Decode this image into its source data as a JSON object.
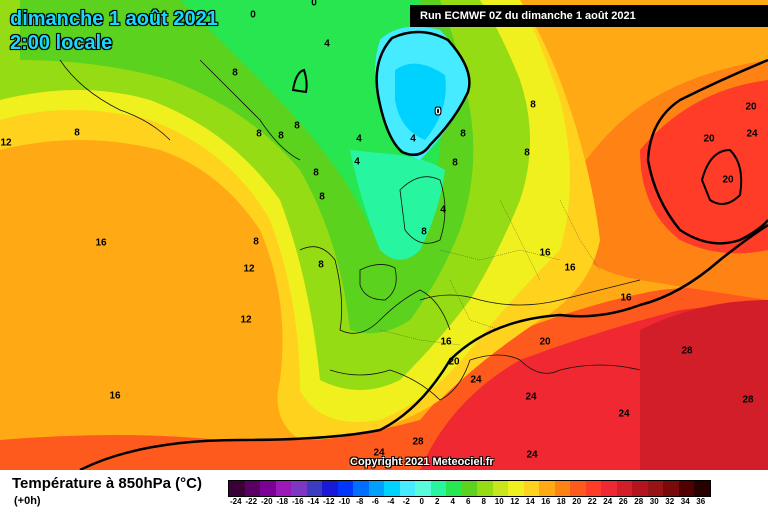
{
  "header": {
    "date_line": "dimanche 1 août 2021",
    "time_line": "2:00 locale",
    "run_info": "Run ECMWF 0Z du dimanche 1 août 2021"
  },
  "copyright": "Copyright 2021 Meteociel.fr",
  "footer": {
    "title": "Température à 850hPa (°C)",
    "subtitle": "(+0h)"
  },
  "legend": {
    "ticks": [
      "-24",
      "-22",
      "-20",
      "-18",
      "-16",
      "-14",
      "-12",
      "-10",
      "-8",
      "-6",
      "-4",
      "-2",
      "0",
      "2",
      "4",
      "6",
      "8",
      "10",
      "12",
      "14",
      "16",
      "18",
      "20",
      "22",
      "24",
      "26",
      "28",
      "30",
      "32",
      "34",
      "36"
    ],
    "colors": [
      "#3c0038",
      "#5a0064",
      "#7d0096",
      "#9b19b9",
      "#7d37c3",
      "#3c3cc3",
      "#1919d7",
      "#0037ff",
      "#006eff",
      "#00a0ff",
      "#00d2ff",
      "#46ebff",
      "#5afadc",
      "#28f5a0",
      "#28e650",
      "#5ad21e",
      "#96dc14",
      "#c8e61e",
      "#f0f01e",
      "#ffd21e",
      "#ffaa14",
      "#ff8214",
      "#ff5a1e",
      "#ff3c28",
      "#f02832",
      "#d21e28",
      "#b4141e",
      "#961414",
      "#780a0a",
      "#500000",
      "#280000"
    ]
  },
  "map_labels": [
    {
      "text": "0"
    },
    {
      "text": "0"
    },
    {
      "text": "0"
    },
    {
      "text": "4"
    },
    {
      "text": "4"
    },
    {
      "text": "4"
    },
    {
      "text": "4"
    },
    {
      "text": "4"
    },
    {
      "text": "8"
    },
    {
      "text": "8"
    },
    {
      "text": "8"
    },
    {
      "text": "8"
    },
    {
      "text": "8"
    },
    {
      "text": "8"
    },
    {
      "text": "8"
    },
    {
      "text": "8"
    },
    {
      "text": "8"
    },
    {
      "text": "8"
    },
    {
      "text": "8"
    },
    {
      "text": "8"
    },
    {
      "text": "8"
    },
    {
      "text": "8"
    },
    {
      "text": "8"
    },
    {
      "text": "12"
    },
    {
      "text": "12"
    },
    {
      "text": "12"
    },
    {
      "text": "16"
    },
    {
      "text": "16"
    },
    {
      "text": "16"
    },
    {
      "text": "16"
    },
    {
      "text": "16"
    },
    {
      "text": "16"
    },
    {
      "text": "20"
    },
    {
      "text": "20"
    },
    {
      "text": "20"
    },
    {
      "text": "20"
    },
    {
      "text": "20"
    },
    {
      "text": "24"
    },
    {
      "text": "24"
    },
    {
      "text": "24"
    },
    {
      "text": "24"
    },
    {
      "text": "24"
    },
    {
      "text": "24"
    },
    {
      "text": "28"
    },
    {
      "text": "28"
    },
    {
      "text": "28"
    }
  ]
}
